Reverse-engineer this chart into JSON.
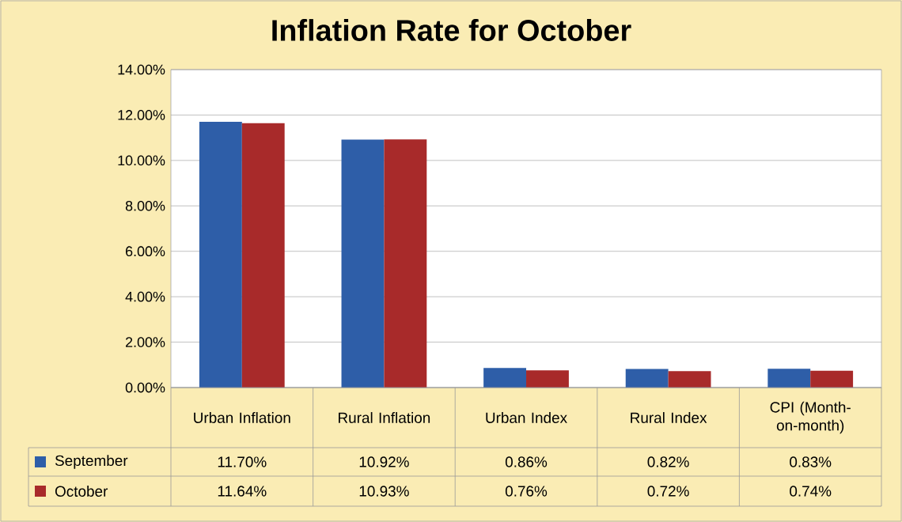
{
  "chart_data": {
    "type": "bar",
    "title": "Inflation Rate for October",
    "categories": [
      "Urban Inflation",
      "Rural Inflation",
      "Urban Index",
      "Rural Index",
      "CPI (Month-on-month)"
    ],
    "series": [
      {
        "name": "September",
        "color": "#2e5ea8",
        "values": [
          11.7,
          10.92,
          0.86,
          0.82,
          0.83
        ],
        "value_labels": [
          "11.70%",
          "10.92%",
          "0.86%",
          "0.82%",
          "0.83%"
        ]
      },
      {
        "name": "October",
        "color": "#a82a2a",
        "values": [
          11.64,
          10.93,
          0.76,
          0.72,
          0.74
        ],
        "value_labels": [
          "11.64%",
          "10.93%",
          "0.76%",
          "0.72%",
          "0.74%"
        ]
      }
    ],
    "ylim": [
      0,
      14
    ],
    "yticks": [
      {
        "value": 0,
        "label": "0.00%"
      },
      {
        "value": 2,
        "label": "2.00%"
      },
      {
        "value": 4,
        "label": "4.00%"
      },
      {
        "value": 6,
        "label": "6.00%"
      },
      {
        "value": 8,
        "label": "8.00%"
      },
      {
        "value": 10,
        "label": "10.00%"
      },
      {
        "value": 12,
        "label": "12.00%"
      },
      {
        "value": 14,
        "label": "14.00%"
      }
    ],
    "grid": "y",
    "legend": "bottom"
  }
}
